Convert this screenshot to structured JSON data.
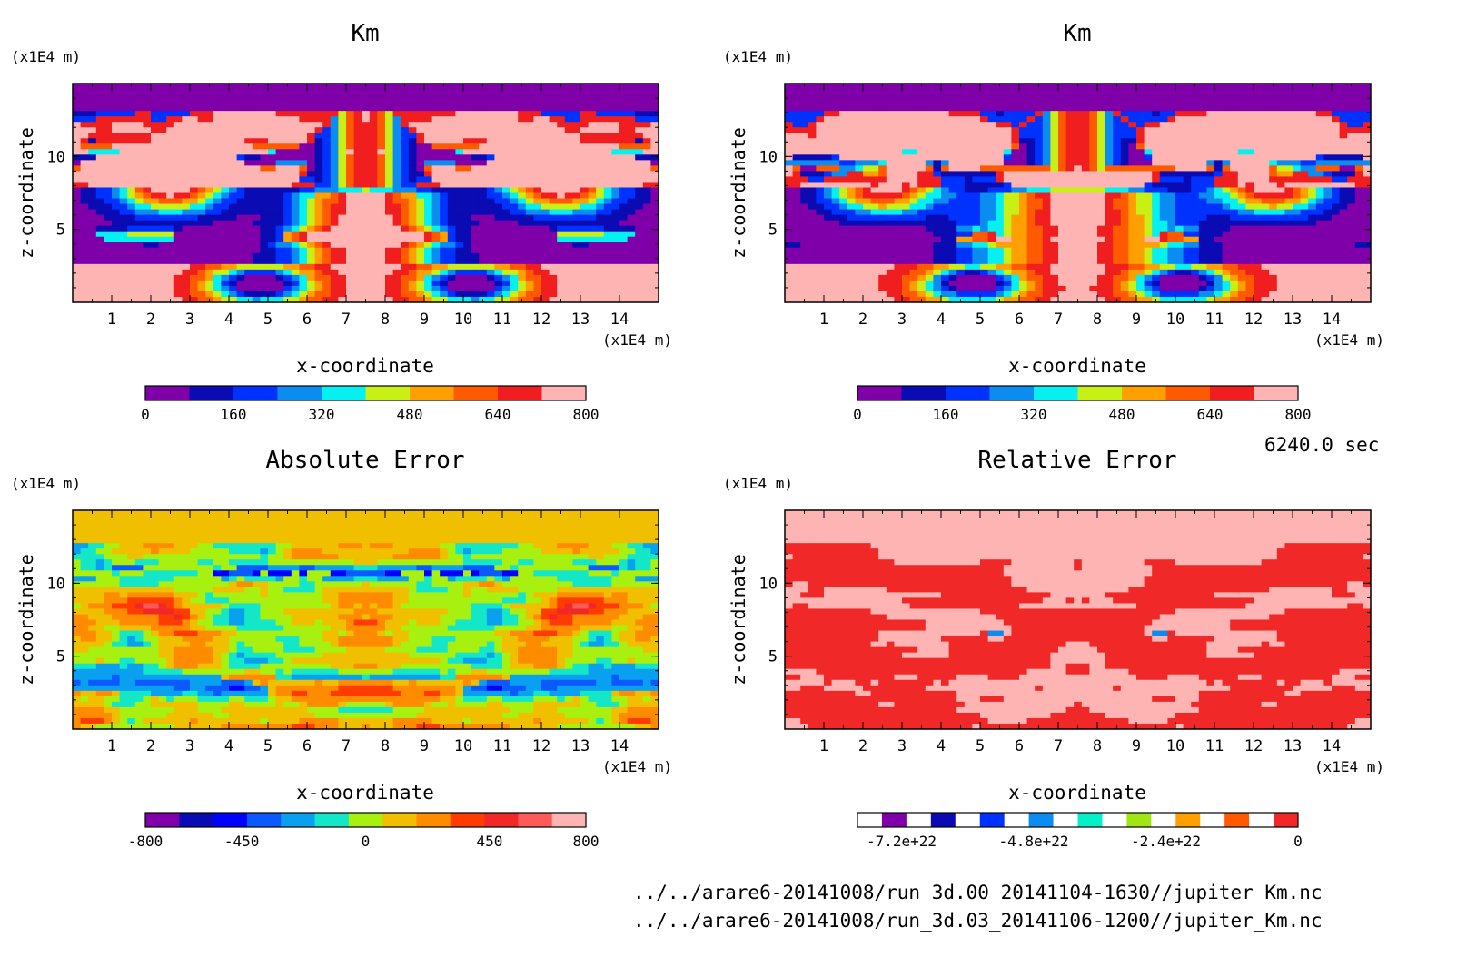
{
  "chart_data": [
    {
      "type": "heatmap",
      "title": "Km",
      "xlabel": "x-coordinate",
      "ylabel": "z-coordinate",
      "x_unit": "(×1E4 m)",
      "y_unit": "(×1E4 m)",
      "x_ticks": [
        "1",
        "2",
        "3",
        "4",
        "5",
        "6",
        "7",
        "8",
        "9",
        "10",
        "11",
        "12",
        "13",
        "14"
      ],
      "y_ticks": [
        "5",
        "10"
      ],
      "xlim": [
        0,
        15
      ],
      "ylim": [
        0,
        15
      ],
      "pattern": "km_a",
      "colorbar": {
        "colors": [
          "#7f00a8",
          "#0b0bb4",
          "#0032ff",
          "#0a8cf0",
          "#05f0f0",
          "#c8f014",
          "#ffa000",
          "#ff5a00",
          "#f01e1e",
          "#ffb4b4"
        ],
        "tick_labels": [
          "0",
          "160",
          "320",
          "480",
          "640",
          "800"
        ],
        "range": [
          0,
          800
        ]
      }
    },
    {
      "type": "heatmap",
      "title": "Km",
      "xlabel": "x-coordinate",
      "ylabel": "z-coordinate",
      "x_unit": "(×1E4 m)",
      "y_unit": "(×1E4 m)",
      "x_ticks": [
        "1",
        "2",
        "3",
        "4",
        "5",
        "6",
        "7",
        "8",
        "9",
        "10",
        "11",
        "12",
        "13",
        "14"
      ],
      "y_ticks": [
        "5",
        "10"
      ],
      "xlim": [
        0,
        15
      ],
      "ylim": [
        0,
        15
      ],
      "pattern": "km_b",
      "colorbar": {
        "colors": [
          "#7f00a8",
          "#0b0bb4",
          "#0032ff",
          "#0a8cf0",
          "#05f0f0",
          "#c8f014",
          "#ffa000",
          "#ff5a00",
          "#f01e1e",
          "#ffb4b4"
        ],
        "tick_labels": [
          "0",
          "160",
          "320",
          "480",
          "640",
          "800"
        ],
        "range": [
          0,
          800
        ]
      }
    },
    {
      "type": "heatmap",
      "title": "Absolute Error",
      "xlabel": "x-coordinate",
      "ylabel": "z-coordinate",
      "x_unit": "(×1E4 m)",
      "y_unit": "(×1E4 m)",
      "x_ticks": [
        "1",
        "2",
        "3",
        "4",
        "5",
        "6",
        "7",
        "8",
        "9",
        "10",
        "11",
        "12",
        "13",
        "14"
      ],
      "y_ticks": [
        "5",
        "10"
      ],
      "xlim": [
        0,
        15
      ],
      "ylim": [
        0,
        15
      ],
      "pattern": "abs_err",
      "colorbar": {
        "colors": [
          "#7f00a8",
          "#0b0bb4",
          "#0000ff",
          "#0a5aff",
          "#0aa0f0",
          "#14e6c8",
          "#a8f010",
          "#f0c000",
          "#ff8c00",
          "#ff3c00",
          "#f02828",
          "#ff5a5a",
          "#ffb4b4"
        ],
        "tick_labels": [
          "-800",
          "-450",
          "0",
          "450",
          "800"
        ],
        "range": [
          -800,
          800
        ]
      }
    },
    {
      "type": "heatmap",
      "title": "Relative Error",
      "xlabel": "x-coordinate",
      "ylabel": "z-coordinate",
      "x_unit": "(×1E4 m)",
      "y_unit": "(×1E4 m)",
      "x_ticks": [
        "1",
        "2",
        "3",
        "4",
        "5",
        "6",
        "7",
        "8",
        "9",
        "10",
        "11",
        "12",
        "13",
        "14"
      ],
      "y_ticks": [
        "5",
        "10"
      ],
      "xlim": [
        0,
        15
      ],
      "ylim": [
        0,
        15
      ],
      "pattern": "rel_err",
      "colorbar": {
        "colors": [
          "#ffffff",
          "#7f00a8",
          "#ffffff",
          "#0b0bb4",
          "#ffffff",
          "#0032ff",
          "#ffffff",
          "#0a8cf0",
          "#ffffff",
          "#05f0c8",
          "#ffffff",
          "#a0e614",
          "#ffffff",
          "#ffa000",
          "#ffffff",
          "#ff5a00",
          "#ffffff",
          "#f02828"
        ],
        "tick_labels": [
          "-7.2e+22",
          "-4.8e+22",
          "-2.4e+22",
          "0"
        ],
        "range": [
          -8e+22,
          0
        ]
      }
    }
  ],
  "footer": {
    "time": "6240.0 sec",
    "file1": "../../arare6-20141008/run_3d.00_20141104-1630//jupiter_Km.nc",
    "file2": "../../arare6-20141008/run_3d.03_20141106-1200//jupiter_Km.nc"
  }
}
